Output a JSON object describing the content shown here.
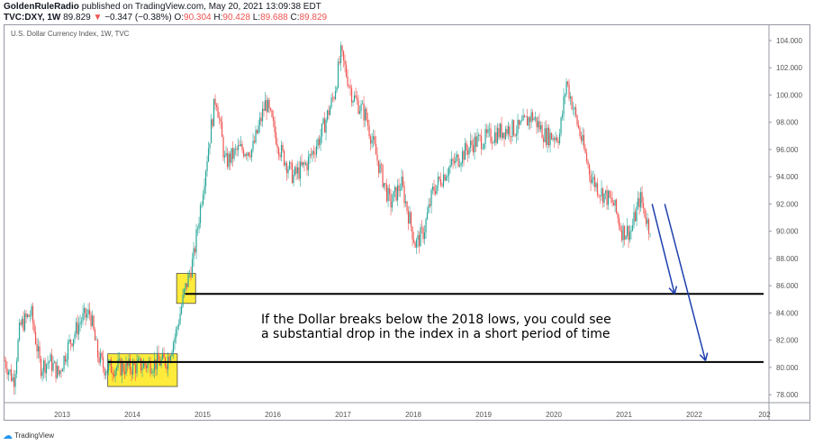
{
  "header": {
    "publisher": "GoldenRuleRadio",
    "published_text": "published on TradingView.com, May 20, 2021 13:09:38 EDT",
    "symbol": "TVC:DXY, 1W",
    "last": "89.829",
    "change": "−0.347 (−0.38%)",
    "open_label": "O:",
    "open": "90.304",
    "high_label": "H:",
    "high": "90.428",
    "low_label": "L:",
    "low": "89.688",
    "close_label": "C:",
    "close": "89.829",
    "down_icon": "triangle-down-icon"
  },
  "chart_title": "U.S. Dollar Currency Index, 1W, TVC",
  "footer": {
    "brand": "TradingView"
  },
  "chart_data": {
    "type": "candlestick",
    "ylim": [
      77,
      105
    ],
    "xlim": [
      2012.2,
      2023.1
    ],
    "y_ticks": [
      "104.000",
      "102.000",
      "100.000",
      "98.000",
      "96.000",
      "94.000",
      "92.000",
      "90.000",
      "88.000",
      "86.000",
      "84.000",
      "82.000",
      "80.000",
      "78.000"
    ],
    "x_ticks": [
      "2013",
      "2014",
      "2015",
      "2016",
      "2017",
      "2018",
      "2019",
      "2020",
      "2021",
      "2022",
      "202"
    ],
    "approx_path": [
      [
        2012.18,
        80.5
      ],
      [
        2012.31,
        79
      ],
      [
        2012.4,
        83
      ],
      [
        2012.56,
        84
      ],
      [
        2012.69,
        80
      ],
      [
        2012.82,
        80.5
      ],
      [
        2012.95,
        79.5
      ],
      [
        2013.08,
        81.5
      ],
      [
        2013.27,
        83.5
      ],
      [
        2013.4,
        84
      ],
      [
        2013.5,
        81
      ],
      [
        2013.59,
        80
      ],
      [
        2013.72,
        80
      ],
      [
        2013.97,
        80
      ],
      [
        2014.49,
        80.5
      ],
      [
        2014.62,
        82.5
      ],
      [
        2014.74,
        85.5
      ],
      [
        2014.87,
        88
      ],
      [
        2015.0,
        93
      ],
      [
        2015.13,
        98
      ],
      [
        2015.19,
        100
      ],
      [
        2015.32,
        95
      ],
      [
        2015.51,
        96
      ],
      [
        2015.71,
        96
      ],
      [
        2015.9,
        99.5
      ],
      [
        2016.1,
        96
      ],
      [
        2016.29,
        94
      ],
      [
        2016.49,
        95
      ],
      [
        2016.68,
        97
      ],
      [
        2016.87,
        100
      ],
      [
        2016.97,
        103
      ],
      [
        2017.13,
        100
      ],
      [
        2017.32,
        98.5
      ],
      [
        2017.5,
        95
      ],
      [
        2017.67,
        92
      ],
      [
        2017.83,
        93.5
      ],
      [
        2018.03,
        89
      ],
      [
        2018.15,
        90
      ],
      [
        2018.28,
        93
      ],
      [
        2018.48,
        94.5
      ],
      [
        2018.67,
        95.5
      ],
      [
        2018.86,
        96.5
      ],
      [
        2019.12,
        97
      ],
      [
        2019.32,
        97.5
      ],
      [
        2019.5,
        97.5
      ],
      [
        2019.69,
        98.5
      ],
      [
        2019.88,
        97
      ],
      [
        2020.08,
        97
      ],
      [
        2020.18,
        101
      ],
      [
        2020.33,
        98
      ],
      [
        2020.53,
        94
      ],
      [
        2020.65,
        93
      ],
      [
        2020.85,
        92
      ],
      [
        2020.97,
        90
      ],
      [
        2021.1,
        90
      ],
      [
        2021.23,
        92.5
      ],
      [
        2021.38,
        89.83
      ]
    ],
    "annotations": {
      "text": "If the Dollar breaks below the 2018 lows, you could see a substantial drop in the index in a short period of time",
      "text_lines": [
        "If the Dollar breaks below the 2018 lows, you could see",
        "a substantial drop in the index in a short period of time"
      ],
      "support_levels": [
        85.4,
        80.4
      ],
      "highlight_boxes": [
        {
          "x": [
            2013.65,
            2014.64
          ],
          "y": [
            78.6,
            81
          ]
        },
        {
          "x": [
            2014.63,
            2014.9
          ],
          "y": [
            84.7,
            86.9
          ]
        }
      ],
      "arrows": [
        {
          "from": [
            2021.4,
            92
          ],
          "to": [
            2021.72,
            85.4
          ]
        },
        {
          "from": [
            2021.58,
            92
          ],
          "to": [
            2022.16,
            80.5
          ]
        }
      ],
      "colors": {
        "up": "#26a69a",
        "down": "#ef5350",
        "box": "#ffeb3b",
        "line": "#000000",
        "arrow": "#1e40af"
      }
    }
  }
}
